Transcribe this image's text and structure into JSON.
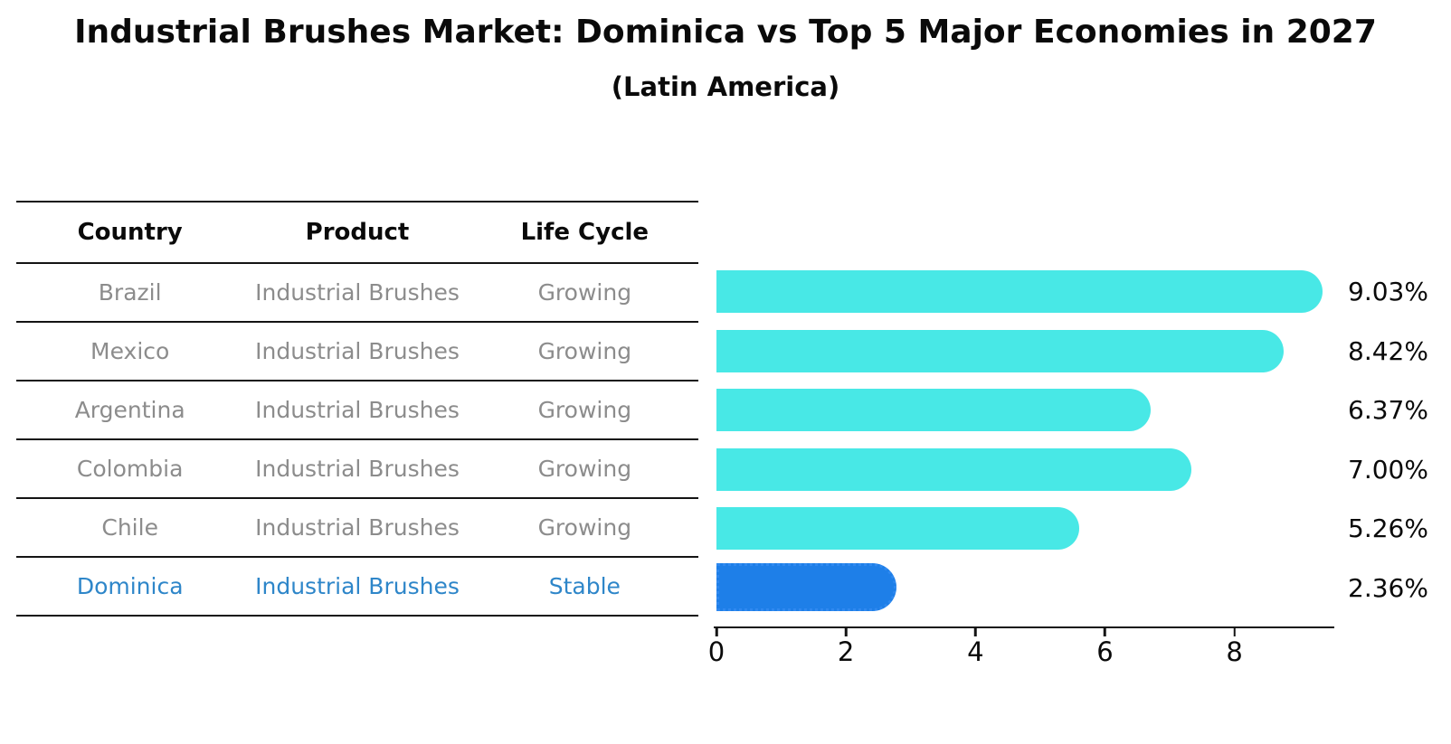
{
  "title": "Industrial Brushes Market: Dominica vs Top 5 Major Economies in 2027",
  "subtitle": "(Latin America)",
  "table": {
    "headers": [
      "Country",
      "Product",
      "Life Cycle"
    ],
    "rows": [
      {
        "country": "Brazil",
        "product": "Industrial Brushes",
        "life_cycle": "Growing",
        "highlight": false
      },
      {
        "country": "Mexico",
        "product": "Industrial Brushes",
        "life_cycle": "Growing",
        "highlight": false
      },
      {
        "country": "Argentina",
        "product": "Industrial Brushes",
        "life_cycle": "Growing",
        "highlight": false
      },
      {
        "country": "Colombia",
        "product": "Industrial Brushes",
        "life_cycle": "Growing",
        "highlight": false
      },
      {
        "country": "Chile",
        "product": "Industrial Brushes",
        "life_cycle": "Growing",
        "highlight": false
      },
      {
        "country": "Dominica",
        "product": "Industrial Brushes",
        "life_cycle": "Stable",
        "highlight": true
      }
    ]
  },
  "chart_data": {
    "type": "bar",
    "orientation": "horizontal",
    "title": "Industrial Brushes Market: Dominica vs Top 5 Major Economies in 2027 (Latin America)",
    "categories": [
      "Brazil",
      "Mexico",
      "Argentina",
      "Colombia",
      "Chile",
      "Dominica"
    ],
    "values": [
      9.03,
      8.42,
      6.37,
      7.0,
      5.26,
      2.36
    ],
    "labels": [
      "9.03%",
      "8.42%",
      "6.37%",
      "7.00%",
      "5.26%",
      "2.36%"
    ],
    "unit": "percent",
    "highlight_category": "Dominica",
    "xticks": [
      0,
      2,
      4,
      6,
      8
    ],
    "xlim": [
      0,
      9.5
    ],
    "grid": false,
    "legend": false,
    "bar_color": "#48e8e6",
    "highlight_color": "#1e7fe8",
    "highlight_border_color": "#2f89f0"
  },
  "colors": {
    "text": "#0a0a0a",
    "muted_text": "#8c8c8c",
    "highlight_text": "#2e86c9",
    "line": "#141414"
  }
}
